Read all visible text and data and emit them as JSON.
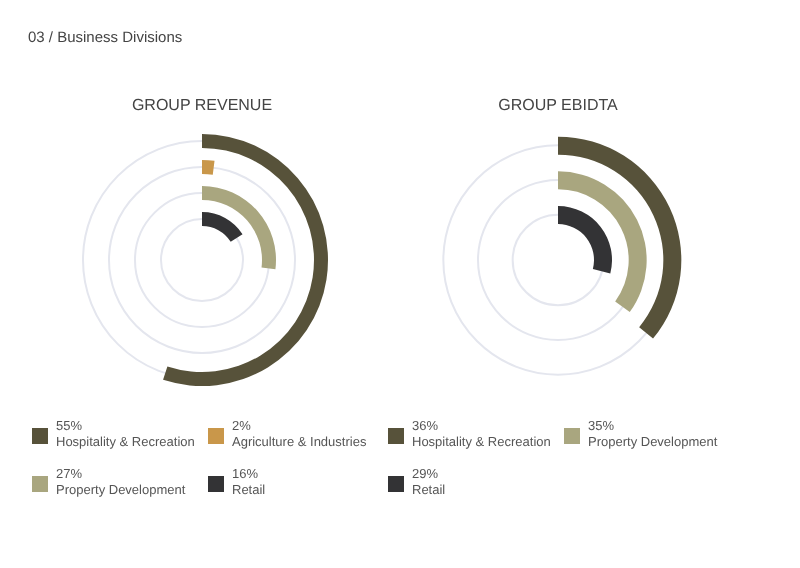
{
  "chart_data": [
    {
      "type": "other",
      "title": "GROUP REVENUE",
      "annotations": [
        "03 / Business Divisions"
      ],
      "categories": [
        "Hospitality & Recreation",
        "Agriculture & Industries",
        "Property Development",
        "Retail"
      ],
      "values": [
        55,
        2,
        27,
        16
      ],
      "value_labels": [
        "55%",
        "2%",
        "27%",
        "16%"
      ],
      "colors": [
        "#57523a",
        "#c9974a",
        "#a9a67f",
        "#333335"
      ]
    },
    {
      "type": "other",
      "title": "GROUP EBIDTA",
      "categories": [
        "Hospitality & Recreation",
        "Property Development",
        "Retail"
      ],
      "values": [
        36,
        35,
        29
      ],
      "value_labels": [
        "36%",
        "35%",
        "29%"
      ],
      "colors": [
        "#57523a",
        "#a9a67f",
        "#333335"
      ]
    }
  ]
}
